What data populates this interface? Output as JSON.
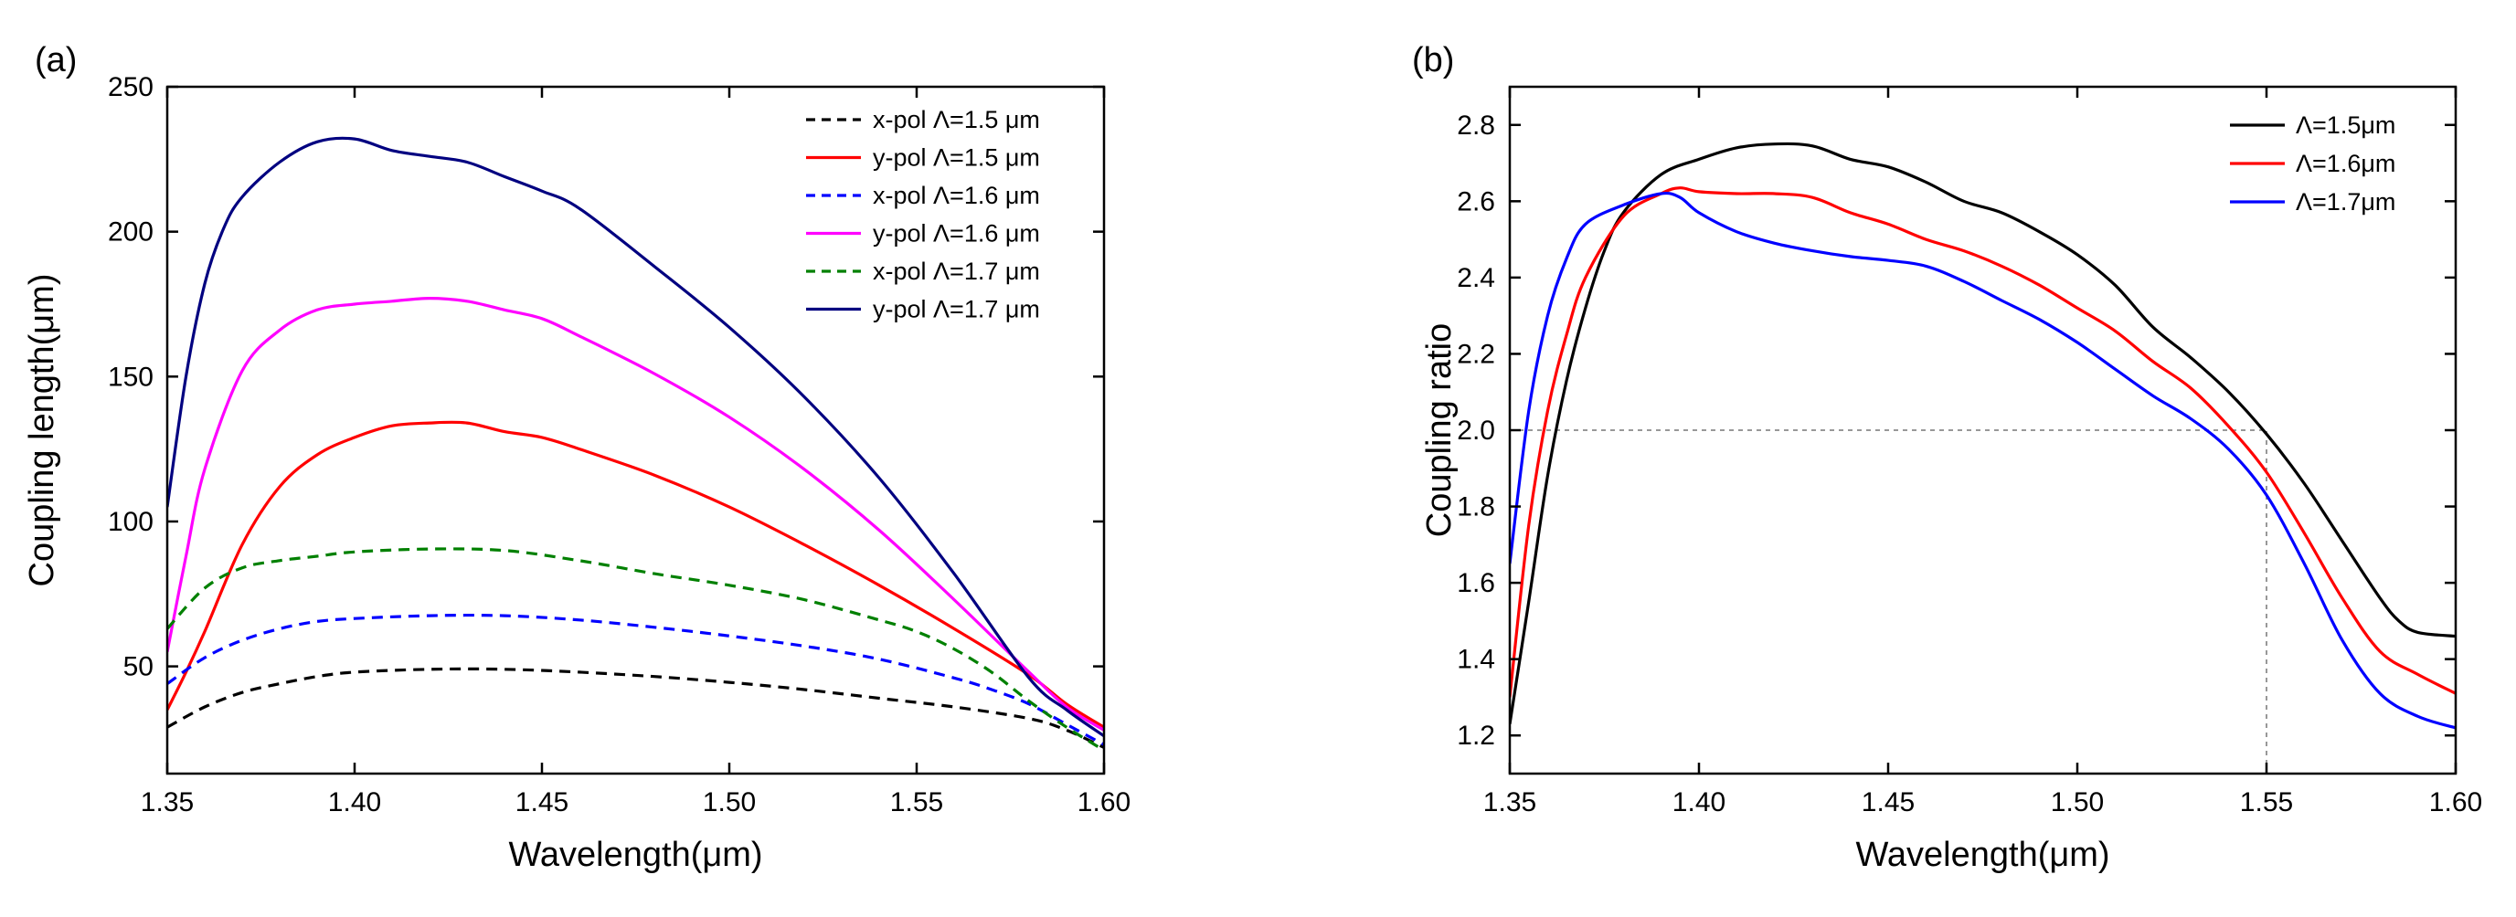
{
  "chart_data": [
    {
      "type": "line",
      "panel_label": "(a)",
      "xlabel": "Wavelength(μm)",
      "ylabel": "Coupling length(μm)",
      "xlim": [
        1.35,
        1.6
      ],
      "ylim": [
        13,
        250
      ],
      "xticks": [
        1.35,
        1.4,
        1.45,
        1.5,
        1.55,
        1.6
      ],
      "xtick_labels": [
        "1.35",
        "1.40",
        "1.45",
        "1.50",
        "1.55",
        "1.60"
      ],
      "yticks": [
        50,
        100,
        150,
        200,
        250
      ],
      "ytick_labels": [
        "50",
        "100",
        "150",
        "200",
        "250"
      ],
      "legend_position": "top-right",
      "grid": false,
      "series": [
        {
          "name": "x-pol Λ=1.5 μm",
          "color": "#000000",
          "style": "dashed",
          "x": [
            1.35,
            1.36,
            1.37,
            1.38,
            1.39,
            1.4,
            1.42,
            1.44,
            1.46,
            1.48,
            1.5,
            1.52,
            1.54,
            1.56,
            1.58,
            1.59,
            1.6
          ],
          "y": [
            29,
            36,
            41,
            44,
            46.5,
            48,
            49,
            49,
            48,
            46.5,
            44.5,
            42,
            39,
            36,
            32,
            28,
            22
          ]
        },
        {
          "name": "y-pol Λ=1.5 μm",
          "color": "#ff0000",
          "style": "solid",
          "x": [
            1.35,
            1.355,
            1.36,
            1.37,
            1.38,
            1.39,
            1.4,
            1.41,
            1.42,
            1.43,
            1.44,
            1.45,
            1.46,
            1.48,
            1.5,
            1.52,
            1.54,
            1.56,
            1.58,
            1.59,
            1.6
          ],
          "y": [
            35,
            48,
            62,
            92,
            112,
            123,
            129,
            133,
            134,
            134,
            131,
            129,
            125,
            116,
            105,
            92,
            78,
            63,
            47,
            37,
            29
          ]
        },
        {
          "name": "x-pol Λ=1.6 μm",
          "color": "#0000ff",
          "style": "dashed",
          "x": [
            1.35,
            1.36,
            1.37,
            1.38,
            1.39,
            1.4,
            1.42,
            1.44,
            1.46,
            1.48,
            1.5,
            1.52,
            1.54,
            1.56,
            1.57,
            1.58,
            1.59,
            1.6
          ],
          "y": [
            44,
            53,
            59,
            63,
            65.5,
            66.5,
            67.5,
            67.5,
            66,
            63.5,
            60.5,
            57,
            52.5,
            46,
            42,
            37,
            30,
            23
          ]
        },
        {
          "name": "y-pol Λ=1.6 μm",
          "color": "#ff00ff",
          "style": "solid",
          "x": [
            1.35,
            1.355,
            1.36,
            1.37,
            1.38,
            1.39,
            1.4,
            1.41,
            1.42,
            1.43,
            1.44,
            1.45,
            1.46,
            1.48,
            1.5,
            1.52,
            1.54,
            1.56,
            1.58,
            1.59,
            1.6
          ],
          "y": [
            55,
            88,
            118,
            152,
            166,
            173,
            175,
            176,
            177,
            176,
            173,
            170,
            164,
            151,
            136,
            118,
            97,
            73,
            48,
            36,
            28
          ]
        },
        {
          "name": "x-pol Λ=1.7 μm",
          "color": "#008000",
          "style": "dashed",
          "x": [
            1.35,
            1.36,
            1.37,
            1.38,
            1.39,
            1.4,
            1.42,
            1.44,
            1.46,
            1.48,
            1.5,
            1.52,
            1.54,
            1.55,
            1.56,
            1.57,
            1.58,
            1.59,
            1.6
          ],
          "y": [
            63,
            77,
            84,
            86.5,
            88,
            89.5,
            90.5,
            90,
            86.5,
            82,
            78,
            73,
            66,
            62,
            56,
            48,
            38,
            29,
            21
          ]
        },
        {
          "name": "y-pol Λ=1.7 μm",
          "color": "#000080",
          "style": "solid",
          "x": [
            1.35,
            1.355,
            1.36,
            1.365,
            1.37,
            1.38,
            1.39,
            1.4,
            1.41,
            1.42,
            1.43,
            1.44,
            1.45,
            1.46,
            1.48,
            1.5,
            1.52,
            1.54,
            1.56,
            1.58,
            1.59,
            1.6
          ],
          "y": [
            105,
            150,
            182,
            201,
            212,
            224,
            231,
            232,
            228,
            226,
            224,
            219,
            214,
            208,
            188,
            167,
            143,
            115,
            82,
            46,
            35,
            26
          ]
        }
      ]
    },
    {
      "type": "line",
      "panel_label": "(b)",
      "xlabel": "Wavelength(μm)",
      "ylabel": "Coupling ratio",
      "xlim": [
        1.35,
        1.6
      ],
      "ylim": [
        1.1,
        2.9
      ],
      "xticks": [
        1.35,
        1.4,
        1.45,
        1.5,
        1.55,
        1.6
      ],
      "xtick_labels": [
        "1.35",
        "1.40",
        "1.45",
        "1.50",
        "1.55",
        "1.60"
      ],
      "yticks": [
        1.2,
        1.4,
        1.6,
        1.8,
        2.0,
        2.2,
        2.4,
        2.6,
        2.8
      ],
      "ytick_labels": [
        "1.2",
        "1.4",
        "1.6",
        "1.8",
        "2.0",
        "2.2",
        "2.4",
        "2.6",
        "2.8"
      ],
      "legend_position": "top-right",
      "grid": false,
      "reference_lines": [
        {
          "axis": "y",
          "value": 2.0,
          "x_from": 1.35,
          "x_to": 1.55
        },
        {
          "axis": "x",
          "value": 1.55,
          "y_from": 1.1,
          "y_to": 2.0
        }
      ],
      "series": [
        {
          "name": "Λ=1.5μm",
          "color": "#000000",
          "style": "solid",
          "x": [
            1.35,
            1.355,
            1.36,
            1.365,
            1.37,
            1.375,
            1.38,
            1.39,
            1.4,
            1.41,
            1.42,
            1.43,
            1.44,
            1.45,
            1.46,
            1.47,
            1.48,
            1.49,
            1.5,
            1.51,
            1.52,
            1.53,
            1.54,
            1.55,
            1.56,
            1.57,
            1.58,
            1.585,
            1.59,
            1.6
          ],
          "y": [
            1.23,
            1.55,
            1.88,
            2.13,
            2.32,
            2.47,
            2.57,
            2.67,
            2.71,
            2.74,
            2.75,
            2.745,
            2.71,
            2.69,
            2.65,
            2.6,
            2.57,
            2.52,
            2.46,
            2.38,
            2.27,
            2.19,
            2.1,
            1.99,
            1.86,
            1.71,
            1.56,
            1.5,
            1.47,
            1.46
          ]
        },
        {
          "name": "Λ=1.6μm",
          "color": "#ff0000",
          "style": "solid",
          "x": [
            1.35,
            1.355,
            1.36,
            1.365,
            1.37,
            1.38,
            1.39,
            1.395,
            1.4,
            1.41,
            1.42,
            1.43,
            1.44,
            1.45,
            1.46,
            1.47,
            1.48,
            1.49,
            1.5,
            1.51,
            1.52,
            1.53,
            1.54,
            1.55,
            1.56,
            1.57,
            1.58,
            1.59,
            1.6
          ],
          "y": [
            1.3,
            1.75,
            2.05,
            2.25,
            2.4,
            2.56,
            2.62,
            2.635,
            2.625,
            2.62,
            2.62,
            2.61,
            2.57,
            2.54,
            2.5,
            2.47,
            2.43,
            2.38,
            2.32,
            2.26,
            2.18,
            2.11,
            2.01,
            1.89,
            1.73,
            1.56,
            1.42,
            1.36,
            1.31
          ]
        },
        {
          "name": "Λ=1.7μm",
          "color": "#0000ff",
          "style": "solid",
          "x": [
            1.35,
            1.355,
            1.36,
            1.365,
            1.37,
            1.38,
            1.39,
            1.395,
            1.4,
            1.41,
            1.42,
            1.43,
            1.44,
            1.45,
            1.46,
            1.47,
            1.48,
            1.49,
            1.5,
            1.51,
            1.52,
            1.53,
            1.54,
            1.55,
            1.56,
            1.57,
            1.58,
            1.59,
            1.6
          ],
          "y": [
            1.65,
            2.05,
            2.3,
            2.45,
            2.54,
            2.59,
            2.62,
            2.61,
            2.57,
            2.52,
            2.49,
            2.47,
            2.455,
            2.445,
            2.43,
            2.39,
            2.34,
            2.29,
            2.23,
            2.16,
            2.09,
            2.03,
            1.95,
            1.83,
            1.65,
            1.45,
            1.31,
            1.25,
            1.22
          ]
        }
      ]
    }
  ]
}
